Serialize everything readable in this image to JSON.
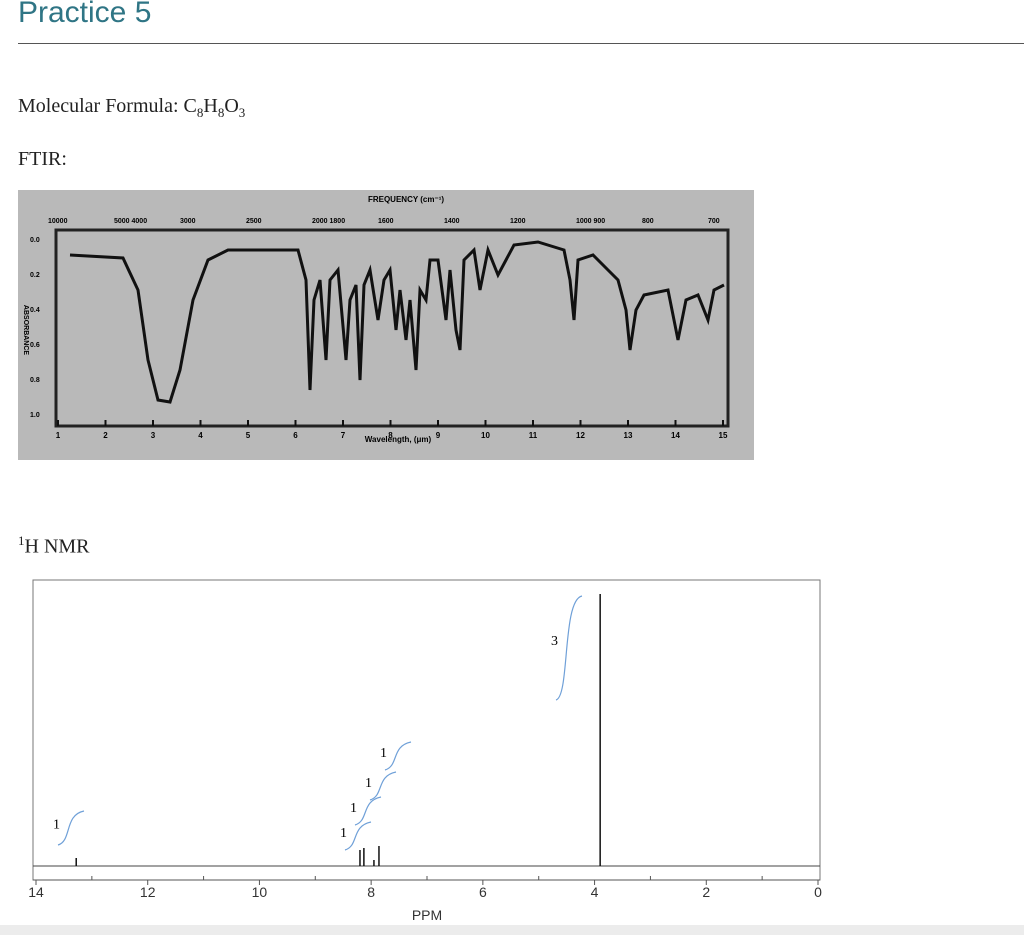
{
  "header": {
    "title": "Practice 5"
  },
  "formula": {
    "label": "Molecular Formula:",
    "parts": [
      {
        "el": "C",
        "sub": "8"
      },
      {
        "el": "H",
        "sub": "8"
      },
      {
        "el": "O",
        "sub": "3"
      }
    ]
  },
  "ftir": {
    "label": "FTIR:",
    "frequency_label": "FREQUENCY (cm⁻¹)",
    "frequency_ticks": [
      "10000",
      "5000 4000",
      "3000",
      "2500",
      "2000 1800",
      "1600",
      "1400",
      "1200",
      "1000 900",
      "800",
      "700"
    ],
    "wavelength_label": "Wavelength, (μm)",
    "wavelength_ticks": [
      1,
      2,
      3,
      4,
      5,
      6,
      7,
      8,
      9,
      10,
      11,
      12,
      13,
      14,
      15
    ],
    "absorbance_label": "ABSORBANCE",
    "absorbance_ticks": [
      "0.0",
      "0.2",
      "0.4",
      "0.6",
      "0.8",
      "1.0"
    ]
  },
  "nmr": {
    "sup": "1",
    "label": "H NMR",
    "xlabel": "PPM",
    "xlim": [
      14,
      0
    ],
    "xticks": [
      14,
      12,
      10,
      8,
      6,
      4,
      2,
      0
    ],
    "minor_ticks": [
      13,
      11,
      9,
      7,
      5,
      3,
      1
    ],
    "peaks": [
      {
        "ppm": 13.28,
        "integration": 1
      },
      {
        "ppm": 8.2,
        "integration": 1
      },
      {
        "ppm": 8.13,
        "integration": 1
      },
      {
        "ppm": 7.95,
        "integration": 1
      },
      {
        "ppm": 7.86,
        "integration": 1
      },
      {
        "ppm": 3.9,
        "integration": 3
      }
    ]
  }
}
